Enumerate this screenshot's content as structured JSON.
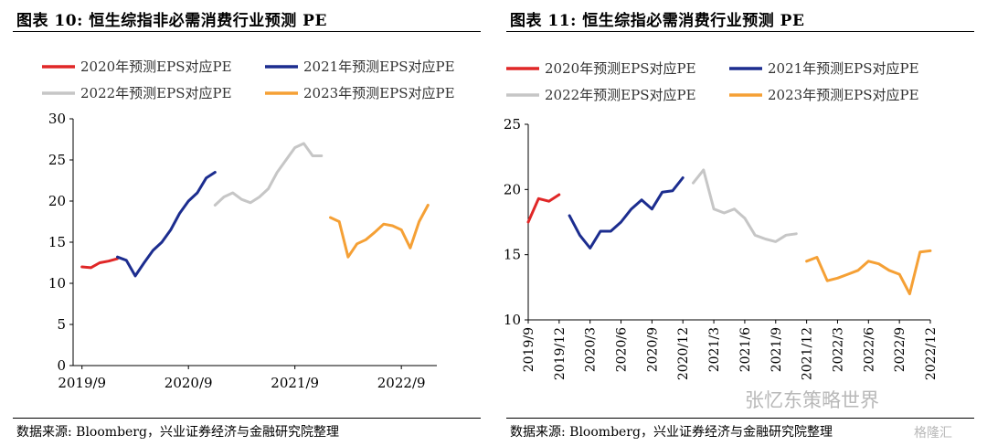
{
  "panels": [
    {
      "title": "图表 10:  恒生综指非必需消费行业预测 PE",
      "source": "数据来源:  Bloomberg，兴业证券经济与金融研究院整理"
    },
    {
      "title": "图表 11:  恒生综指必需消费行业预测 PE",
      "source": "数据来源:  Bloomberg，兴业证券经济与金融研究院整理"
    }
  ],
  "watermark": "张忆东策略世界",
  "logo": "格隆汇",
  "colors": {
    "2020": "#e02727",
    "2021": "#1c2d8f",
    "2022": "#c6c6c6",
    "2023": "#f5a035"
  },
  "chart_data": [
    {
      "type": "line",
      "title": "恒生综指非必需消费行业预测 PE",
      "legend_position": "top",
      "ylim": [
        0,
        30
      ],
      "yticks": [
        0,
        5,
        10,
        15,
        20,
        25,
        30
      ],
      "xlim": [
        "2019-08",
        "2023-01"
      ],
      "xticks": [
        "2019/9",
        "2020/9",
        "2021/9",
        "2022/9"
      ],
      "series": [
        {
          "name": "2020年预测EPS对应PE",
          "key": "2020",
          "x": [
            "2019-09",
            "2019-10",
            "2019-11",
            "2019-12",
            "2020-01"
          ],
          "values": [
            12.0,
            11.9,
            12.5,
            12.7,
            13.0
          ]
        },
        {
          "name": "2021年预测EPS对应PE",
          "key": "2021",
          "x": [
            "2020-01",
            "2020-02",
            "2020-03",
            "2020-04",
            "2020-05",
            "2020-06",
            "2020-07",
            "2020-08",
            "2020-09",
            "2020-10",
            "2020-11",
            "2020-12"
          ],
          "values": [
            13.2,
            12.8,
            10.9,
            12.5,
            14.0,
            15.0,
            16.5,
            18.5,
            20.0,
            21.0,
            22.8,
            23.5
          ]
        },
        {
          "name": "2022年预测EPS对应PE",
          "key": "2022",
          "x": [
            "2020-12",
            "2021-01",
            "2021-02",
            "2021-03",
            "2021-04",
            "2021-05",
            "2021-06",
            "2021-07",
            "2021-08",
            "2021-09",
            "2021-10",
            "2021-11",
            "2021-12"
          ],
          "values": [
            19.5,
            20.5,
            21.0,
            20.2,
            19.8,
            20.5,
            21.5,
            23.5,
            25.0,
            26.5,
            27.0,
            25.5,
            25.5
          ]
        },
        {
          "name": "2023年预测EPS对应PE",
          "key": "2023",
          "x": [
            "2022-01",
            "2022-02",
            "2022-03",
            "2022-04",
            "2022-05",
            "2022-06",
            "2022-07",
            "2022-08",
            "2022-09",
            "2022-10",
            "2022-11",
            "2022-12"
          ],
          "values": [
            18.0,
            17.5,
            13.2,
            14.8,
            15.3,
            16.2,
            17.2,
            17.0,
            16.5,
            14.3,
            17.5,
            19.5
          ]
        }
      ]
    },
    {
      "type": "line",
      "title": "恒生综指必需消费行业预测 PE",
      "legend_position": "top",
      "ylim": [
        10,
        25
      ],
      "yticks": [
        10,
        15,
        20,
        25
      ],
      "xlim": [
        "2019-09",
        "2022-12"
      ],
      "xticks": [
        "2019/9",
        "2019/12",
        "2020/3",
        "2020/6",
        "2020/9",
        "2020/12",
        "2021/3",
        "2021/6",
        "2021/9",
        "2021/12",
        "2022/3",
        "2022/6",
        "2022/9",
        "2022/12"
      ],
      "series": [
        {
          "name": "2020年预测EPS对应PE",
          "key": "2020",
          "x": [
            "2019-09",
            "2019-10",
            "2019-11",
            "2019-12"
          ],
          "values": [
            17.5,
            19.3,
            19.1,
            19.6
          ]
        },
        {
          "name": "2021年预测EPS对应PE",
          "key": "2021",
          "x": [
            "2020-01",
            "2020-02",
            "2020-03",
            "2020-04",
            "2020-05",
            "2020-06",
            "2020-07",
            "2020-08",
            "2020-09",
            "2020-10",
            "2020-11",
            "2020-12"
          ],
          "values": [
            18.0,
            16.5,
            15.5,
            16.8,
            16.8,
            17.5,
            18.5,
            19.2,
            18.5,
            19.8,
            19.9,
            20.9
          ]
        },
        {
          "name": "2022年预测EPS对应PE",
          "key": "2022",
          "x": [
            "2021-01",
            "2021-02",
            "2021-03",
            "2021-04",
            "2021-05",
            "2021-06",
            "2021-07",
            "2021-08",
            "2021-09",
            "2021-10",
            "2021-11"
          ],
          "values": [
            20.5,
            21.5,
            18.5,
            18.2,
            18.5,
            17.8,
            16.5,
            16.2,
            16.0,
            16.5,
            16.6
          ]
        },
        {
          "name": "2023年预测EPS对应PE",
          "key": "2023",
          "x": [
            "2021-12",
            "2022-01",
            "2022-02",
            "2022-03",
            "2022-04",
            "2022-05",
            "2022-06",
            "2022-07",
            "2022-08",
            "2022-09",
            "2022-10",
            "2022-11",
            "2022-12"
          ],
          "values": [
            14.5,
            14.8,
            13.0,
            13.2,
            13.5,
            13.8,
            14.5,
            14.3,
            13.8,
            13.5,
            12.0,
            15.2,
            15.3
          ]
        }
      ]
    }
  ]
}
